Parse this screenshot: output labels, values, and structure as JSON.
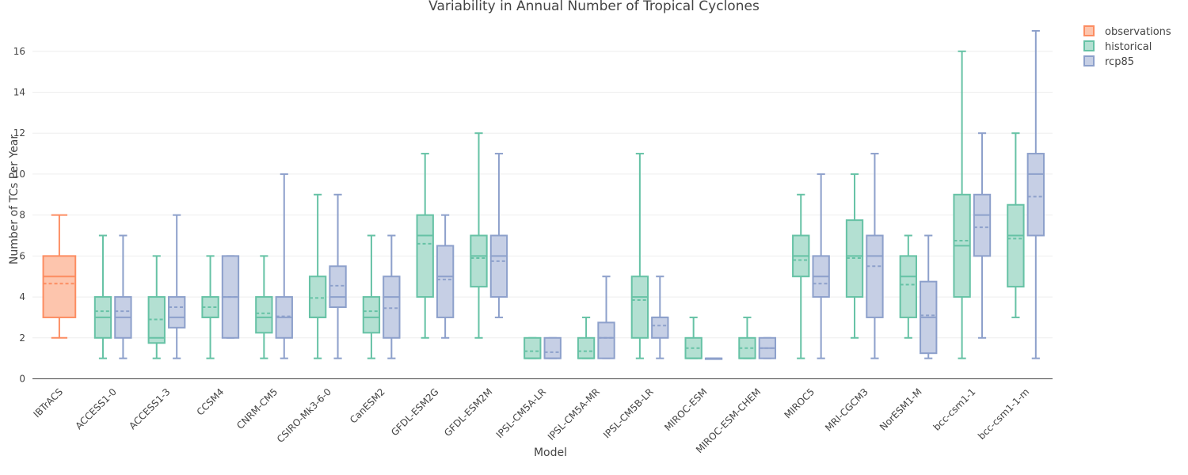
{
  "chart_data": {
    "type": "box",
    "title": "Variability in Annual Number of Tropical Cyclones",
    "xlabel": "Model",
    "ylabel": "Number of TCs Per Year",
    "ylim": [
      0,
      17.5
    ],
    "yticks": [
      0,
      2,
      4,
      6,
      8,
      10,
      12,
      14,
      16
    ],
    "grid": true,
    "legend_position": "top-right",
    "categories": [
      "IBTrACS",
      "ACCESS1-0",
      "ACCESS1-3",
      "CCSM4",
      "CNRM-CM5",
      "CSIRO-Mk3-6-0",
      "CanESM2",
      "GFDL-ESM2G",
      "GFDL-ESM2M",
      "IPSL-CM5A-LR",
      "IPSL-CM5A-MR",
      "IPSL-CM5B-LR",
      "MIROC-ESM",
      "MIROC-ESM-CHEM",
      "MIROC5",
      "MRI-CGCM3",
      "NorESM1-M",
      "bcc-csm1-1",
      "bcc-csm1-1-m"
    ],
    "series": [
      {
        "name": "observations",
        "color": "#fc8d62",
        "fill": "#fdc5ad",
        "boxes": [
          {
            "category": "IBTrACS",
            "min": 2,
            "q1": 3,
            "median": 5,
            "mean": 4.65,
            "q3": 6,
            "max": 8
          }
        ]
      },
      {
        "name": "historical",
        "color": "#66c2a5",
        "fill": "#b3e0d2",
        "boxes": [
          {
            "category": "ACCESS1-0",
            "min": 1,
            "q1": 2,
            "median": 3,
            "mean": 3.3,
            "q3": 4,
            "max": 7
          },
          {
            "category": "ACCESS1-3",
            "min": 1,
            "q1": 1.75,
            "median": 2,
            "mean": 2.9,
            "q3": 4,
            "max": 6
          },
          {
            "category": "CCSM4",
            "min": 1,
            "q1": 3,
            "median": 3,
            "mean": 3.5,
            "q3": 4,
            "max": 6
          },
          {
            "category": "CNRM-CM5",
            "min": 1,
            "q1": 2.25,
            "median": 3,
            "mean": 3.2,
            "q3": 4,
            "max": 6
          },
          {
            "category": "CSIRO-Mk3-6-0",
            "min": 1,
            "q1": 3,
            "median": 3,
            "mean": 3.95,
            "q3": 5,
            "max": 9
          },
          {
            "category": "CanESM2",
            "min": 1,
            "q1": 2.25,
            "median": 3,
            "mean": 3.3,
            "q3": 4,
            "max": 7
          },
          {
            "category": "GFDL-ESM2G",
            "min": 2,
            "q1": 4,
            "median": 7,
            "mean": 6.6,
            "q3": 8,
            "max": 11
          },
          {
            "category": "GFDL-ESM2M",
            "min": 2,
            "q1": 4.5,
            "median": 6,
            "mean": 5.9,
            "q3": 7,
            "max": 12
          },
          {
            "category": "IPSL-CM5A-LR",
            "min": 1,
            "q1": 1,
            "median": 1,
            "mean": 1.35,
            "q3": 2,
            "max": 2
          },
          {
            "category": "IPSL-CM5A-MR",
            "min": 1,
            "q1": 1,
            "median": 1,
            "mean": 1.35,
            "q3": 2,
            "max": 3
          },
          {
            "category": "IPSL-CM5B-LR",
            "min": 1,
            "q1": 2,
            "median": 4,
            "mean": 3.85,
            "q3": 5,
            "max": 11
          },
          {
            "category": "MIROC-ESM",
            "min": 1,
            "q1": 1,
            "median": 1,
            "mean": 1.5,
            "q3": 2,
            "max": 3
          },
          {
            "category": "MIROC-ESM-CHEM",
            "min": 1,
            "q1": 1,
            "median": 1,
            "mean": 1.5,
            "q3": 2,
            "max": 3
          },
          {
            "category": "MIROC5",
            "min": 1,
            "q1": 5,
            "median": 6,
            "mean": 5.8,
            "q3": 7,
            "max": 9
          },
          {
            "category": "MRI-CGCM3",
            "min": 2,
            "q1": 4,
            "median": 6,
            "mean": 5.9,
            "q3": 7.75,
            "max": 10
          },
          {
            "category": "NorESM1-M",
            "min": 2,
            "q1": 3,
            "median": 5,
            "mean": 4.6,
            "q3": 6,
            "max": 7
          },
          {
            "category": "bcc-csm1-1",
            "min": 1,
            "q1": 4,
            "median": 6.5,
            "mean": 6.75,
            "q3": 9,
            "max": 16
          },
          {
            "category": "bcc-csm1-1-m",
            "min": 3,
            "q1": 4.5,
            "median": 7,
            "mean": 6.85,
            "q3": 8.5,
            "max": 12
          }
        ]
      },
      {
        "name": "rcp85",
        "color": "#8da0cb",
        "fill": "#c6cfe5",
        "boxes": [
          {
            "category": "ACCESS1-0",
            "min": 1,
            "q1": 2,
            "median": 3,
            "mean": 3.3,
            "q3": 4,
            "max": 7
          },
          {
            "category": "ACCESS1-3",
            "min": 1,
            "q1": 2.5,
            "median": 3,
            "mean": 3.5,
            "q3": 4,
            "max": 8
          },
          {
            "category": "CCSM4",
            "min": 2,
            "q1": 2,
            "median": 4,
            "mean": 4,
            "q3": 6,
            "max": 6
          },
          {
            "category": "CNRM-CM5",
            "min": 1,
            "q1": 2,
            "median": 3,
            "mean": 3.05,
            "q3": 4,
            "max": 10
          },
          {
            "category": "CSIRO-Mk3-6-0",
            "min": 1,
            "q1": 3.5,
            "median": 4,
            "mean": 4.55,
            "q3": 5.5,
            "max": 9
          },
          {
            "category": "CanESM2",
            "min": 1,
            "q1": 2,
            "median": 4,
            "mean": 3.45,
            "q3": 5,
            "max": 7
          },
          {
            "category": "GFDL-ESM2G",
            "min": 2,
            "q1": 3,
            "median": 5,
            "mean": 4.85,
            "q3": 6.5,
            "max": 8
          },
          {
            "category": "GFDL-ESM2M",
            "min": 3,
            "q1": 4,
            "median": 6,
            "mean": 5.75,
            "q3": 7,
            "max": 11
          },
          {
            "category": "IPSL-CM5A-LR",
            "min": 1,
            "q1": 1,
            "median": 1,
            "mean": 1.3,
            "q3": 2,
            "max": 2
          },
          {
            "category": "IPSL-CM5A-MR",
            "min": 1,
            "q1": 1,
            "median": 2,
            "mean": 2,
            "q3": 2.75,
            "max": 5
          },
          {
            "category": "IPSL-CM5B-LR",
            "min": 1,
            "q1": 2,
            "median": 3,
            "mean": 2.6,
            "q3": 3,
            "max": 5
          },
          {
            "category": "MIROC-ESM",
            "min": 1,
            "q1": 1,
            "median": 1,
            "mean": 1,
            "q3": 1,
            "max": 1
          },
          {
            "category": "MIROC-ESM-CHEM",
            "min": 1,
            "q1": 1,
            "median": 1.5,
            "mean": 1.5,
            "q3": 2,
            "max": 2
          },
          {
            "category": "MIROC5",
            "min": 1,
            "q1": 4,
            "median": 5,
            "mean": 4.65,
            "q3": 6,
            "max": 10
          },
          {
            "category": "MRI-CGCM3",
            "min": 1,
            "q1": 3,
            "median": 6,
            "mean": 5.5,
            "q3": 7,
            "max": 11
          },
          {
            "category": "NorESM1-M",
            "min": 1,
            "q1": 1.25,
            "median": 3,
            "mean": 3.1,
            "q3": 4.75,
            "max": 7
          },
          {
            "category": "bcc-csm1-1",
            "min": 2,
            "q1": 6,
            "median": 8,
            "mean": 7.4,
            "q3": 9,
            "max": 12
          },
          {
            "category": "bcc-csm1-1-m",
            "min": 1,
            "q1": 7,
            "median": 10,
            "mean": 8.9,
            "q3": 11,
            "max": 17
          }
        ]
      }
    ]
  }
}
